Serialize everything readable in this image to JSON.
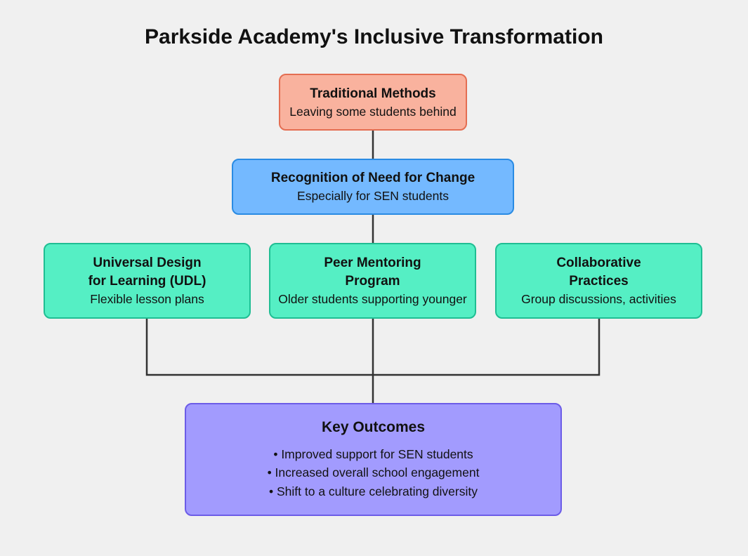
{
  "title": "Parkside Academy's Inclusive Transformation",
  "nodes": {
    "traditional": {
      "heading": "Traditional Methods",
      "detail": "Leaving some students behind"
    },
    "recognition": {
      "heading": "Recognition of Need for Change",
      "detail": "Especially for SEN students"
    },
    "udl": {
      "heading_line1": "Universal Design",
      "heading_line2": "for Learning (UDL)",
      "detail": "Flexible lesson plans"
    },
    "peer": {
      "heading_line1": "Peer Mentoring",
      "heading_line2": "Program",
      "detail": "Older students supporting younger"
    },
    "collab": {
      "heading_line1": "Collaborative",
      "heading_line2": "Practices",
      "detail": "Group discussions, activities"
    },
    "outcomes": {
      "heading": "Key Outcomes",
      "items": [
        "• Improved support for SEN students",
        "• Increased overall school engagement",
        "• Shift to a culture celebrating diversity"
      ]
    }
  },
  "colors": {
    "traditional_fill": "#f9b29e",
    "recognition_fill": "#74b9ff",
    "strategy_fill": "#55efc4",
    "outcomes_fill": "#a29bfe",
    "connector": "#333333",
    "background": "#f0f0f0"
  }
}
